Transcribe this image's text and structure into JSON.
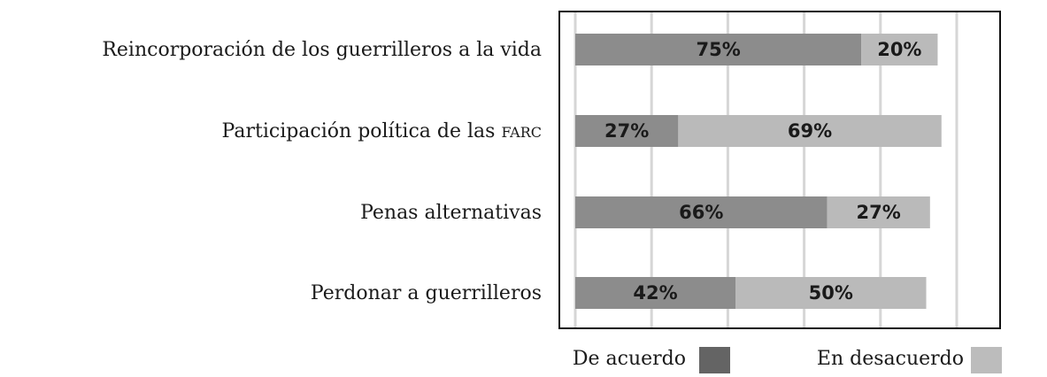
{
  "chart_data": {
    "type": "bar",
    "orientation": "horizontal",
    "stacked": true,
    "categories": [
      "Reincorporación de los guerrilleros a la vida",
      "Participación política de las FARC",
      "Penas alternativas",
      "Perdonar a guerrilleros"
    ],
    "series": [
      {
        "name": "De acuerdo",
        "values": [
          75,
          27,
          66,
          42
        ],
        "labels": [
          "75%",
          "27%",
          "66%",
          "42%"
        ],
        "color": "#8c8c8c",
        "legend_color": "#646464"
      },
      {
        "name": "En desacuerdo",
        "values": [
          20,
          69,
          27,
          50
        ],
        "labels": [
          "20%",
          "69%",
          "27%",
          "50%"
        ],
        "color": "#bababa",
        "legend_color": "#bcbcbc"
      }
    ],
    "xlim": [
      0,
      100
    ],
    "xticks": [
      0,
      20,
      40,
      60,
      80,
      100
    ],
    "grid": true,
    "grid_color": "#d6d6d6",
    "legend_position": "bottom-right"
  }
}
